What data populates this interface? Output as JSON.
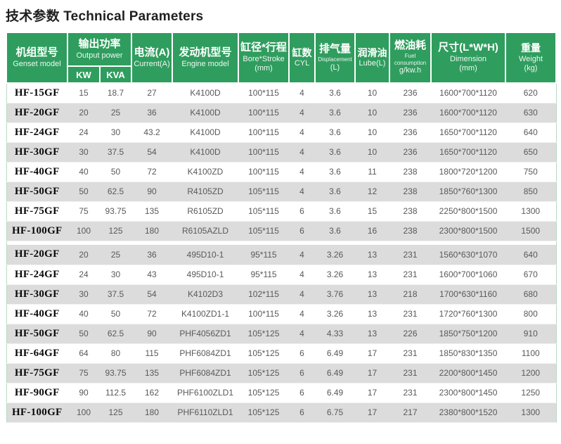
{
  "title": "技术参数 Technical Parameters",
  "colors": {
    "header_green": "#2f9d5e",
    "stripe_gray": "#dcdcdc",
    "table_border": "#b5d8c4",
    "cell_text": "#595959",
    "model_text": "#0a0a0a",
    "title_text": "#1f1f1f"
  },
  "table": {
    "column_keys": [
      "model",
      "kw",
      "kva",
      "current",
      "engine",
      "bore-stroke",
      "cyl",
      "displacement",
      "lube",
      "fuel-consumption",
      "dimension",
      "weight"
    ],
    "headers": {
      "genset": {
        "zh": "机组型号",
        "en": "Genset model"
      },
      "output_power": {
        "zh": "输出功率",
        "en": "Output power",
        "sub": [
          "KW",
          "KVA"
        ]
      },
      "current": {
        "zh": "电流(A)",
        "en": "Current(A)"
      },
      "engine": {
        "zh": "发动机型号",
        "en": "Engine model"
      },
      "bore_stroke": {
        "zh": "缸径*行程",
        "en": "Bore*Stroke",
        "unit": "(mm)"
      },
      "cyl": {
        "zh": "缸数",
        "en": "CYL"
      },
      "displacement": {
        "zh": "排气量",
        "en": "Displacement",
        "unit": "(L)"
      },
      "lube": {
        "zh": "润滑油",
        "en": "Lube(L)"
      },
      "fuel": {
        "zh": "燃油耗",
        "en": "Fuel consumption",
        "unit": "g/kw.h"
      },
      "dimension": {
        "zh": "尺寸(L*W*H)",
        "en": "Dimension",
        "unit": "(mm)"
      },
      "weight": {
        "zh": "重量",
        "en": "Weight",
        "unit": "(kg)"
      }
    },
    "sections": [
      {
        "first_stripe": "white",
        "rows": [
          [
            "HF-15GF",
            "15",
            "18.7",
            "27",
            "K4100D",
            "100*115",
            "4",
            "3.6",
            "10",
            "236",
            "1600*700*1120",
            "620"
          ],
          [
            "HF-20GF",
            "20",
            "25",
            "36",
            "K4100D",
            "100*115",
            "4",
            "3.6",
            "10",
            "236",
            "1600*700*1120",
            "630"
          ],
          [
            "HF-24GF",
            "24",
            "30",
            "43.2",
            "K4100D",
            "100*115",
            "4",
            "3.6",
            "10",
            "236",
            "1650*700*1120",
            "640"
          ],
          [
            "HF-30GF",
            "30",
            "37.5",
            "54",
            "K4100D",
            "100*115",
            "4",
            "3.6",
            "10",
            "236",
            "1650*700*1120",
            "650"
          ],
          [
            "HF-40GF",
            "40",
            "50",
            "72",
            "K4100ZD",
            "100*115",
            "4",
            "3.6",
            "11",
            "238",
            "1800*720*1200",
            "750"
          ],
          [
            "HF-50GF",
            "50",
            "62.5",
            "90",
            "R4105ZD",
            "105*115",
            "4",
            "3.6",
            "12",
            "238",
            "1850*760*1300",
            "850"
          ],
          [
            "HF-75GF",
            "75",
            "93.75",
            "135",
            "R6105ZD",
            "105*115",
            "6",
            "3.6",
            "15",
            "238",
            "2250*800*1500",
            "1300"
          ],
          [
            "HF-100GF",
            "100",
            "125",
            "180",
            "R6105AZLD",
            "105*115",
            "6",
            "3.6",
            "16",
            "238",
            "2300*800*1500",
            "1500"
          ]
        ]
      },
      {
        "first_stripe": "gray",
        "rows": [
          [
            "HF-20GF",
            "20",
            "25",
            "36",
            "495D10-1",
            "95*115",
            "4",
            "3.26",
            "13",
            "231",
            "1560*630*1070",
            "640"
          ],
          [
            "HF-24GF",
            "24",
            "30",
            "43",
            "495D10-1",
            "95*115",
            "4",
            "3.26",
            "13",
            "231",
            "1600*700*1060",
            "670"
          ],
          [
            "HF-30GF",
            "30",
            "37.5",
            "54",
            "K4102D3",
            "102*115",
            "4",
            "3.76",
            "13",
            "218",
            "1700*630*1160",
            "680"
          ],
          [
            "HF-40GF",
            "40",
            "50",
            "72",
            "K4100ZD1-1",
            "100*115",
            "4",
            "3.26",
            "13",
            "231",
            "1720*760*1300",
            "800"
          ],
          [
            "HF-50GF",
            "50",
            "62.5",
            "90",
            "PHF4056ZD1",
            "105*125",
            "4",
            "4.33",
            "13",
            "226",
            "1850*750*1200",
            "910"
          ],
          [
            "HF-64GF",
            "64",
            "80",
            "115",
            "PHF6084ZD1",
            "105*125",
            "6",
            "6.49",
            "17",
            "231",
            "1850*830*1350",
            "1100"
          ],
          [
            "HF-75GF",
            "75",
            "93.75",
            "135",
            "PHF6084ZD1",
            "105*125",
            "6",
            "6.49",
            "17",
            "231",
            "2200*800*1450",
            "1200"
          ],
          [
            "HF-90GF",
            "90",
            "112.5",
            "162",
            "PHF6100ZLD1",
            "105*125",
            "6",
            "6.49",
            "17",
            "231",
            "2300*800*1450",
            "1250"
          ],
          [
            "HF-100GF",
            "100",
            "125",
            "180",
            "PHF6110ZLD1",
            "105*125",
            "6",
            "6.75",
            "17",
            "217",
            "2380*800*1520",
            "1300"
          ]
        ]
      }
    ]
  }
}
